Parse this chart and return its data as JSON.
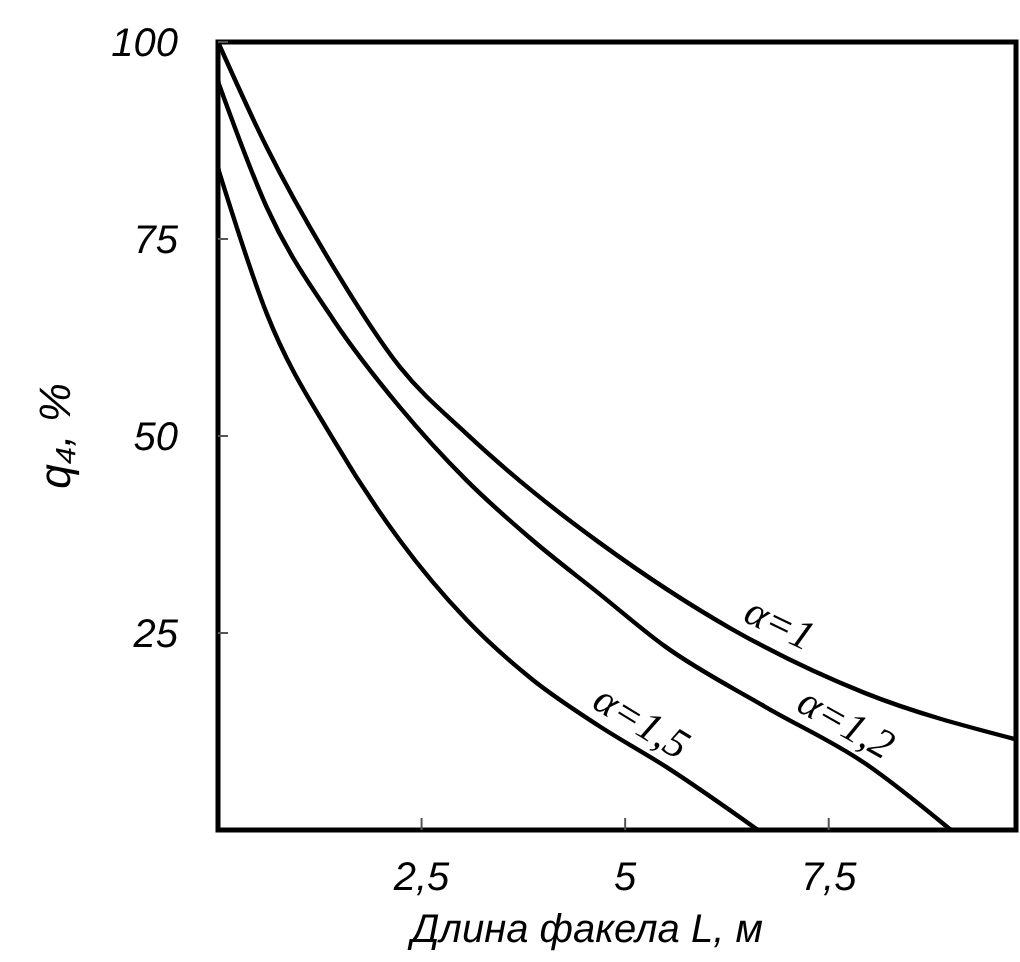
{
  "chart_data": {
    "type": "line",
    "xlabel": "Длина факела L, м",
    "ylabel": "q₄, %",
    "xlim": [
      0,
      9.8
    ],
    "ylim": [
      0,
      100
    ],
    "xticks": [
      {
        "value": 2.5,
        "label": "2,5"
      },
      5,
      {
        "value": 7.5,
        "label": "7,5"
      }
    ],
    "yticks": [
      25,
      50,
      75,
      100
    ],
    "marker": "none",
    "line_style": "solid",
    "series": [
      {
        "name": "α=1",
        "color": "#000000",
        "x": [
          0,
          0.6,
          1.42,
          2.23,
          3.05,
          3.86,
          4.68,
          6.31,
          7.94,
          9.8
        ],
        "values": [
          100,
          86.6,
          71.4,
          58.8,
          50.3,
          43,
          36.5,
          25.5,
          17.4,
          11.5
        ]
      },
      {
        "name": "α=1,2",
        "color": "#000000",
        "x": [
          0,
          0.6,
          1.42,
          2.23,
          3.05,
          3.86,
          4.68,
          5.49,
          6.71,
          7.94,
          9.0
        ],
        "values": [
          95,
          79,
          64.7,
          53.7,
          44.4,
          36.8,
          30,
          23.3,
          15.7,
          8.5,
          0
        ]
      },
      {
        "name": "α=1,5",
        "color": "#000000",
        "x": [
          0,
          0.6,
          1.42,
          2.23,
          3.05,
          3.86,
          4.68,
          5.49,
          6.63
        ],
        "values": [
          84,
          65.5,
          49.5,
          36.8,
          26.7,
          19.1,
          13.2,
          8.1,
          0
        ]
      }
    ]
  }
}
